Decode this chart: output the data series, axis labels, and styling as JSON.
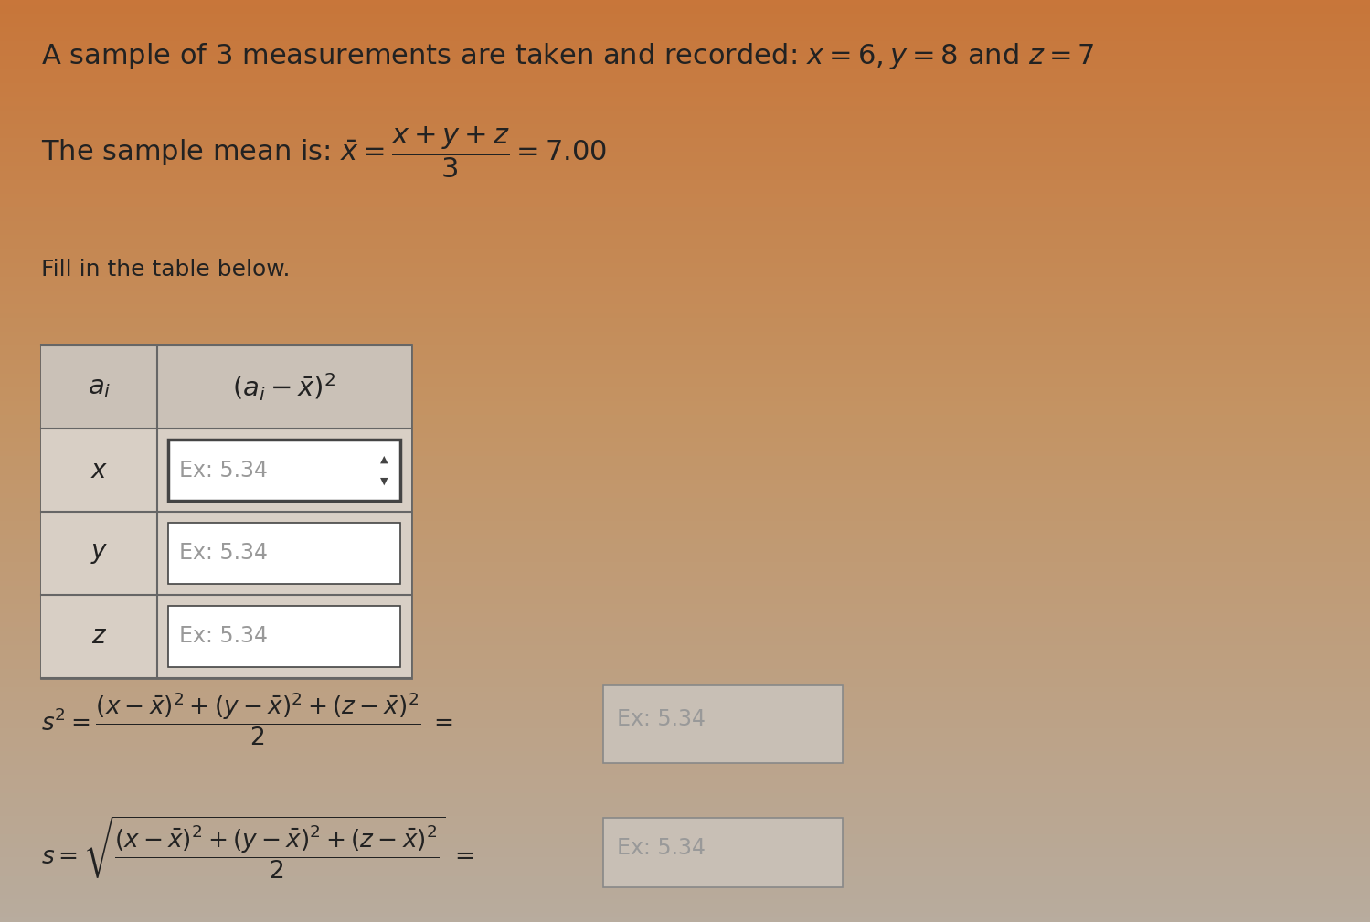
{
  "bg_top_color": "#c8763a",
  "bg_bottom_color": "#b8ac9e",
  "text_color": "#222222",
  "title_line1": "A sample of 3 measurements are taken and recorded: $x = 6, y = 8$ and $z = 7$",
  "title_line2": "The sample mean is: $\\bar{x} = \\dfrac{x+y+z}{3} = 7.00$",
  "fill_text": "Fill in the table below.",
  "table_header_col1": "$a_i$",
  "table_header_col2": "$(a_i - \\bar{x})^2$",
  "table_rows": [
    [
      "$x$",
      "Ex: 5.34"
    ],
    [
      "$y$",
      "Ex: 5.34"
    ],
    [
      "$z$",
      "Ex: 5.34"
    ]
  ],
  "answer_placeholder": "Ex: 5.34",
  "font_size_title": 22,
  "font_size_body": 18,
  "font_size_table_header": 19,
  "font_size_table_cell": 17,
  "font_size_formula": 16,
  "table_bg": "#d8cfc5",
  "table_border": "#666666",
  "input_box_bg": "#ffffff",
  "input_box_border": "#444444",
  "placeholder_color": "#999999",
  "answer_box_bg": "#c8bfb5"
}
